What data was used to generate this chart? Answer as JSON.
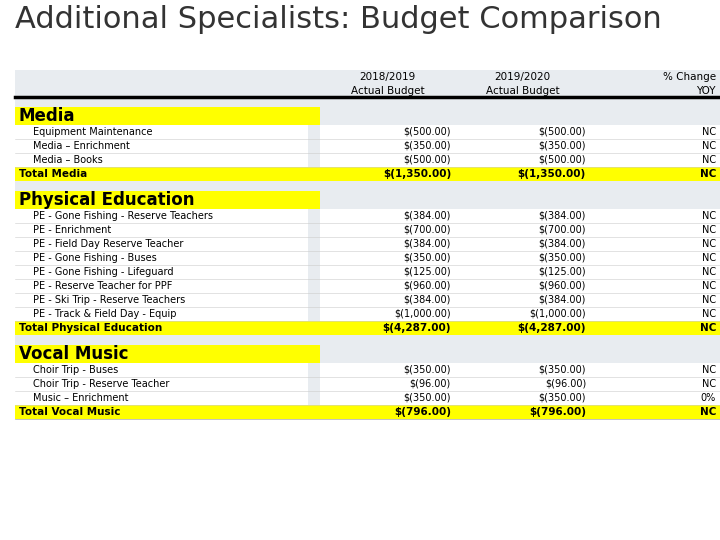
{
  "title": "Additional Specialists: Budget Comparison",
  "sections": [
    {
      "header": "Media",
      "rows": [
        [
          "Equipment Maintenance",
          "$(500.00)",
          "$(500.00)",
          "NC"
        ],
        [
          "Media – Enrichment",
          "$(350.00)",
          "$(350.00)",
          "NC"
        ],
        [
          "Media – Books",
          "$(500.00)",
          "$(500.00)",
          "NC"
        ]
      ],
      "total_label": "Total Media",
      "total_values": [
        "$(1,350.00)",
        "$(1,350.00)",
        "NC"
      ]
    },
    {
      "header": "Physical Education",
      "rows": [
        [
          "PE - Gone Fishing - Reserve Teachers",
          "$(384.00)",
          "$(384.00)",
          "NC"
        ],
        [
          "PE - Enrichment",
          "$(700.00)",
          "$(700.00)",
          "NC"
        ],
        [
          "PE - Field Day Reserve Teacher",
          "$(384.00)",
          "$(384.00)",
          "NC"
        ],
        [
          "PE - Gone Fishing - Buses",
          "$(350.00)",
          "$(350.00)",
          "NC"
        ],
        [
          "PE - Gone Fishing - Lifeguard",
          "$(125.00)",
          "$(125.00)",
          "NC"
        ],
        [
          "PE - Reserve Teacher for PPF",
          "$(960.00)",
          "$(960.00)",
          "NC"
        ],
        [
          "PE - Ski Trip - Reserve Teachers",
          "$(384.00)",
          "$(384.00)",
          "NC"
        ],
        [
          "PE - Track & Field Day - Equip",
          "$(1,000.00)",
          "$(1,000.00)",
          "NC"
        ]
      ],
      "total_label": "Total Physical Education",
      "total_values": [
        "$(4,287.00)",
        "$(4,287.00)",
        "NC"
      ]
    },
    {
      "header": "Vocal Music",
      "rows": [
        [
          "Choir Trip - Buses",
          "$(350.00)",
          "$(350.00)",
          "NC"
        ],
        [
          "Choir Trip - Reserve Teacher",
          "$(96.00)",
          "$(96.00)",
          "NC"
        ],
        [
          "Music – Enrichment",
          "$(350.00)",
          "$(350.00)",
          "0%"
        ]
      ],
      "total_label": "Total Vocal Music",
      "total_values": [
        "$(796.00)",
        "$(796.00)",
        "NC"
      ]
    }
  ],
  "yellow": "#FFFF00",
  "row_bg": "#E8ECF0",
  "white": "#FFFFFF",
  "black": "#000000",
  "title_color": "#333333",
  "title_fontsize": 22,
  "hdr_fontsize": 7.5,
  "row_fontsize": 7.0,
  "sec_fontsize": 12,
  "tot_fontsize": 7.5
}
